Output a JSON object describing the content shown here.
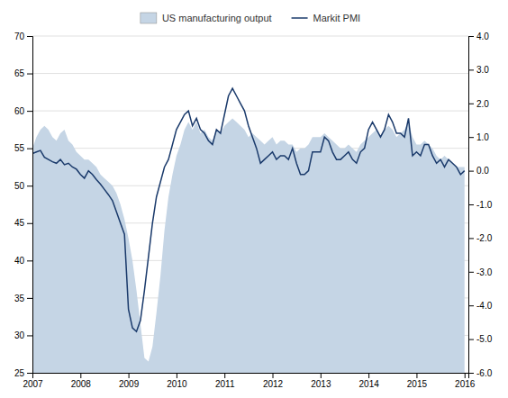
{
  "chart_data": {
    "type": "area",
    "x": [
      2007.0,
      2007.083,
      2007.167,
      2007.25,
      2007.333,
      2007.417,
      2007.5,
      2007.583,
      2007.667,
      2007.75,
      2007.833,
      2007.917,
      2008.0,
      2008.083,
      2008.167,
      2008.25,
      2008.333,
      2008.417,
      2008.5,
      2008.583,
      2008.667,
      2008.75,
      2008.833,
      2008.917,
      2009.0,
      2009.083,
      2009.167,
      2009.25,
      2009.333,
      2009.417,
      2009.5,
      2009.583,
      2009.667,
      2009.75,
      2009.833,
      2009.917,
      2010.0,
      2010.083,
      2010.167,
      2010.25,
      2010.333,
      2010.417,
      2010.5,
      2010.583,
      2010.667,
      2010.75,
      2010.833,
      2010.917,
      2011.0,
      2011.083,
      2011.167,
      2011.25,
      2011.333,
      2011.417,
      2011.5,
      2011.583,
      2011.667,
      2011.75,
      2011.833,
      2011.917,
      2012.0,
      2012.083,
      2012.167,
      2012.25,
      2012.333,
      2012.417,
      2012.5,
      2012.583,
      2012.667,
      2012.75,
      2012.833,
      2012.917,
      2013.0,
      2013.083,
      2013.167,
      2013.25,
      2013.333,
      2013.417,
      2013.5,
      2013.583,
      2013.667,
      2013.75,
      2013.833,
      2013.917,
      2014.0,
      2014.083,
      2014.167,
      2014.25,
      2014.333,
      2014.417,
      2014.5,
      2014.583,
      2014.667,
      2014.75,
      2014.833,
      2014.917,
      2015.0,
      2015.083,
      2015.167,
      2015.25,
      2015.333,
      2015.417,
      2015.5,
      2015.583,
      2015.667,
      2015.75,
      2015.833,
      2015.917,
      2016.0
    ],
    "series": [
      {
        "name": "US manufacturing output",
        "type": "area",
        "color": "#c5d5e5",
        "values": [
          55.0,
          56.5,
          57.5,
          58.0,
          57.5,
          56.5,
          56.0,
          57.0,
          57.5,
          56.0,
          55.5,
          54.5,
          54.0,
          53.5,
          53.5,
          53.0,
          52.5,
          51.5,
          51.0,
          50.5,
          50.0,
          49.0,
          47.5,
          45.5,
          43.0,
          40.0,
          36.0,
          31.5,
          27.0,
          26.5,
          28.5,
          33.0,
          38.0,
          44.0,
          48.5,
          51.5,
          54.0,
          55.5,
          57.5,
          58.5,
          57.5,
          58.5,
          57.0,
          57.5,
          56.5,
          56.0,
          57.5,
          57.0,
          58.0,
          58.5,
          59.0,
          58.5,
          58.0,
          57.5,
          56.5,
          57.0,
          56.5,
          56.0,
          55.5,
          56.0,
          56.5,
          55.5,
          56.0,
          56.0,
          55.5,
          55.5,
          54.5,
          55.0,
          55.0,
          55.5,
          56.5,
          56.5,
          56.5,
          57.0,
          56.5,
          56.0,
          55.5,
          55.0,
          55.0,
          55.5,
          55.0,
          54.5,
          55.5,
          56.0,
          56.5,
          57.0,
          57.5,
          56.5,
          57.5,
          58.0,
          57.5,
          56.5,
          57.0,
          57.5,
          58.5,
          56.5,
          55.5,
          55.5,
          56.0,
          55.5,
          55.0,
          54.0,
          53.5,
          54.0,
          53.5,
          53.0,
          52.5,
          52.5,
          52.5
        ]
      },
      {
        "name": "Markit PMI",
        "type": "line",
        "color": "#1a3a6b",
        "values": [
          54.3,
          54.5,
          54.7,
          53.8,
          53.5,
          53.2,
          53.0,
          53.5,
          52.8,
          53.0,
          52.5,
          52.2,
          51.5,
          51.0,
          52.0,
          51.5,
          50.8,
          50.2,
          49.5,
          48.8,
          48.0,
          46.5,
          45.0,
          43.5,
          33.5,
          31.0,
          30.5,
          32.0,
          36.0,
          40.5,
          45.0,
          48.5,
          50.5,
          52.5,
          53.5,
          55.5,
          57.5,
          58.5,
          59.5,
          60.0,
          58.0,
          59.0,
          57.5,
          57.0,
          56.0,
          55.5,
          57.5,
          57.0,
          59.5,
          62.0,
          63.0,
          62.0,
          61.0,
          60.0,
          58.0,
          56.5,
          55.0,
          53.0,
          53.5,
          54.0,
          54.5,
          53.5,
          54.0,
          54.0,
          53.5,
          55.0,
          53.0,
          51.5,
          51.5,
          52.0,
          54.5,
          54.5,
          54.5,
          56.5,
          56.0,
          54.5,
          53.5,
          53.5,
          54.0,
          54.5,
          53.5,
          53.0,
          54.5,
          55.0,
          57.5,
          58.5,
          57.5,
          56.5,
          57.5,
          59.5,
          58.5,
          57.0,
          57.0,
          56.5,
          59.0,
          54.0,
          54.5,
          54.0,
          55.5,
          55.5,
          54.0,
          53.0,
          53.5,
          52.5,
          53.5,
          53.0,
          52.5,
          51.5,
          52.0
        ]
      }
    ],
    "xlim": [
      2007,
      2016.08
    ],
    "xticks": [
      2007,
      2008,
      2009,
      2010,
      2011,
      2012,
      2013,
      2014,
      2015,
      2016
    ],
    "ylim": [
      25,
      70
    ],
    "yticks": [
      25,
      30,
      35,
      40,
      45,
      50,
      55,
      60,
      65,
      70
    ],
    "y2lim": [
      -6.0,
      4.0
    ],
    "y2ticks": [
      {
        "value": -6.0,
        "label": "-6.0"
      },
      {
        "value": -5.0,
        "label": "-5.0"
      },
      {
        "value": -4.0,
        "label": "-4.0"
      },
      {
        "value": -3.0,
        "label": "-3.0"
      },
      {
        "value": -2.0,
        "label": "-2.0"
      },
      {
        "value": -1.0,
        "label": "-1.0"
      },
      {
        "value": 0.0,
        "label": "0.0"
      },
      {
        "value": 1.0,
        "label": "1.0"
      },
      {
        "value": 2.0,
        "label": "2.0"
      },
      {
        "value": 3.0,
        "label": "3.0"
      },
      {
        "value": 4.0,
        "label": "4.0"
      }
    ],
    "grid": true,
    "legend": "top"
  }
}
